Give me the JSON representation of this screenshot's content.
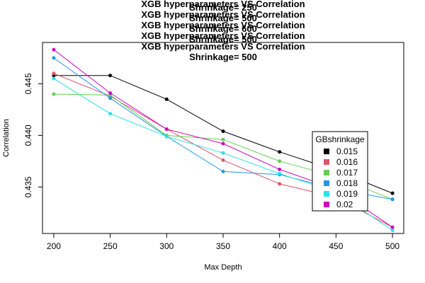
{
  "chart_data": {
    "type": "line",
    "title_lines": [
      "XGB hyperparameters VS Correlation",
      "Shrinkage= 250",
      "XGB hyperparameters VS Correlation",
      "Shrinkage= 500",
      "XGB hyperparameters VS Correlation",
      "Shrinkage= 600",
      "XGB hyperparameters VS Correlation",
      "Shrinkage= 500",
      "XGB hyperparameters VS Correlation",
      "Shrinkage= 500"
    ],
    "xlabel": "Max Depth",
    "ylabel": "Correlation",
    "x": [
      200,
      250,
      300,
      350,
      400,
      450,
      500
    ],
    "x_ticks": [
      "200",
      "250",
      "300",
      "350",
      "400",
      "450",
      "500"
    ],
    "y_ticks": [
      "0.435",
      "0.440",
      "0.445"
    ],
    "y_tick_values": [
      0.435,
      0.44,
      0.445
    ],
    "xlim": [
      190,
      510
    ],
    "ylim": [
      0.4305,
      0.449
    ],
    "legend": {
      "title": "GBshrinkage",
      "position": "right"
    },
    "series": [
      {
        "name": "0.015",
        "color": "#000000",
        "values": [
          0.4458,
          0.4458,
          0.4435,
          0.4404,
          0.4384,
          0.4366,
          0.4344
        ]
      },
      {
        "name": "0.016",
        "color": "#DF536B",
        "values": [
          0.446,
          0.4438,
          0.4406,
          0.4376,
          0.4353,
          0.434,
          0.4311
        ]
      },
      {
        "name": "0.017",
        "color": "#61D04F",
        "values": [
          0.444,
          0.4439,
          0.44,
          0.4396,
          0.4375,
          0.436,
          0.4338
        ]
      },
      {
        "name": "0.018",
        "color": "#2297E6",
        "values": [
          0.4475,
          0.4436,
          0.4399,
          0.4365,
          0.4362,
          0.4348,
          0.4338
        ]
      },
      {
        "name": "0.019",
        "color": "#28E2E5",
        "values": [
          0.4455,
          0.4421,
          0.4399,
          0.4383,
          0.4363,
          0.4345,
          0.4308
        ]
      },
      {
        "name": "0.02",
        "color": "#CD0BBC",
        "values": [
          0.4483,
          0.4441,
          0.4406,
          0.4392,
          0.4367,
          0.4348,
          0.4311
        ]
      }
    ]
  }
}
